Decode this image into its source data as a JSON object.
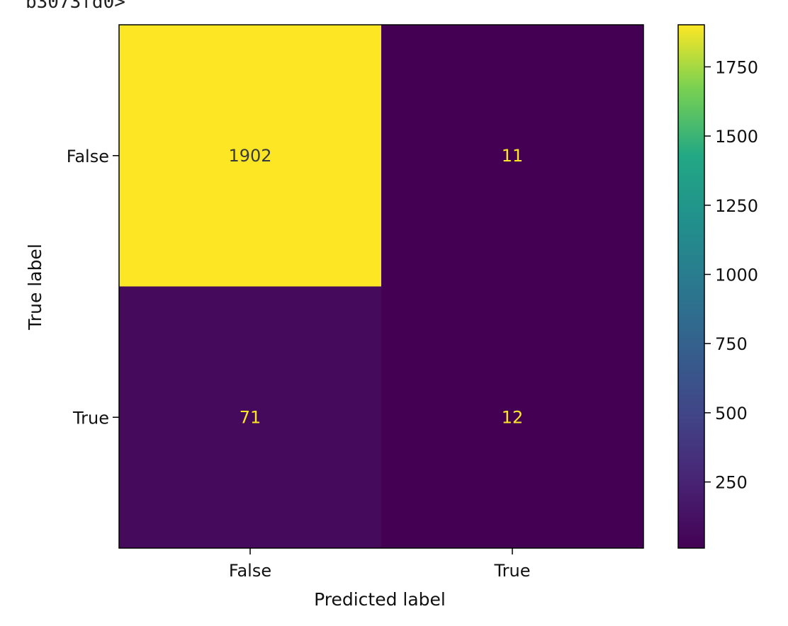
{
  "cell_output_fragment": "b3073fd0>",
  "chart_data": {
    "type": "heatmap",
    "title": "",
    "xlabel": "Predicted label",
    "ylabel": "True label",
    "x_categories": [
      "False",
      "True"
    ],
    "y_categories": [
      "False",
      "True"
    ],
    "matrix": [
      [
        1902,
        11
      ],
      [
        71,
        12
      ]
    ],
    "colormap": "viridis",
    "colorbar": {
      "ticks": [
        250,
        500,
        750,
        1000,
        1250,
        1500,
        1750
      ],
      "min": 11,
      "max": 1902
    },
    "colors": {
      "high": "#fde725",
      "low": "#440154"
    },
    "grid": false
  }
}
